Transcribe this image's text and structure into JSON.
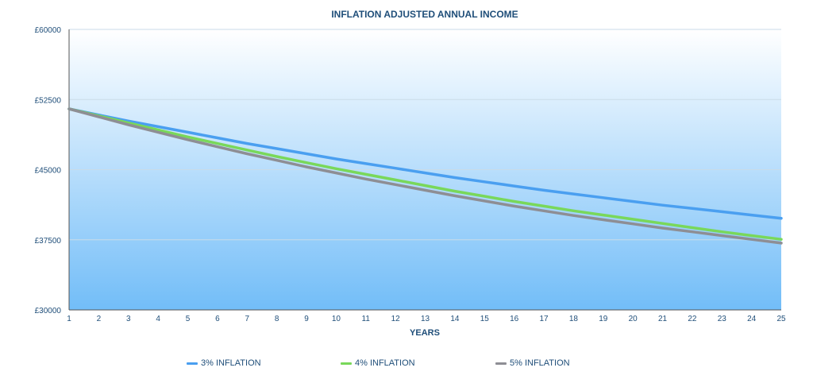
{
  "chart_data": {
    "type": "line",
    "title": "INFLATION ADJUSTED ANNUAL INCOME",
    "xlabel": "YEARS",
    "ylabel": "",
    "x": [
      1,
      2,
      3,
      4,
      5,
      6,
      7,
      8,
      9,
      10,
      11,
      12,
      13,
      14,
      15,
      16,
      17,
      18,
      19,
      20,
      21,
      22,
      23,
      24,
      25
    ],
    "ylim": [
      30000,
      60000
    ],
    "yticks": [
      30000,
      37500,
      45000,
      52500,
      60000
    ],
    "ytick_labels": [
      "£30000",
      "£37500",
      "£45000",
      "£52500",
      "£60000"
    ],
    "grid": true,
    "legend": "bottom",
    "series": [
      {
        "name": "3% INFLATION",
        "color": "#4a9ff0",
        "values": [
          51500,
          50850,
          50200,
          49600,
          49000,
          48400,
          47800,
          47250,
          46700,
          46150,
          45650,
          45150,
          44650,
          44150,
          43700,
          43250,
          42800,
          42400,
          42000,
          41600,
          41200,
          40850,
          40500,
          40150,
          39800
        ]
      },
      {
        "name": "4% INFLATION",
        "color": "#79d85a",
        "values": [
          51500,
          50750,
          50000,
          49250,
          48500,
          47800,
          47100,
          46400,
          45750,
          45100,
          44500,
          43900,
          43300,
          42700,
          42150,
          41600,
          41100,
          40600,
          40150,
          39700,
          39250,
          38800,
          38350,
          37950,
          37550
        ]
      },
      {
        "name": "5% INFLATION",
        "color": "#8e8e94",
        "values": [
          51500,
          50650,
          49800,
          49000,
          48200,
          47450,
          46700,
          46000,
          45300,
          44650,
          44000,
          43400,
          42800,
          42200,
          41650,
          41100,
          40600,
          40100,
          39650,
          39200,
          38750,
          38350,
          37950,
          37550,
          37150
        ]
      }
    ]
  }
}
